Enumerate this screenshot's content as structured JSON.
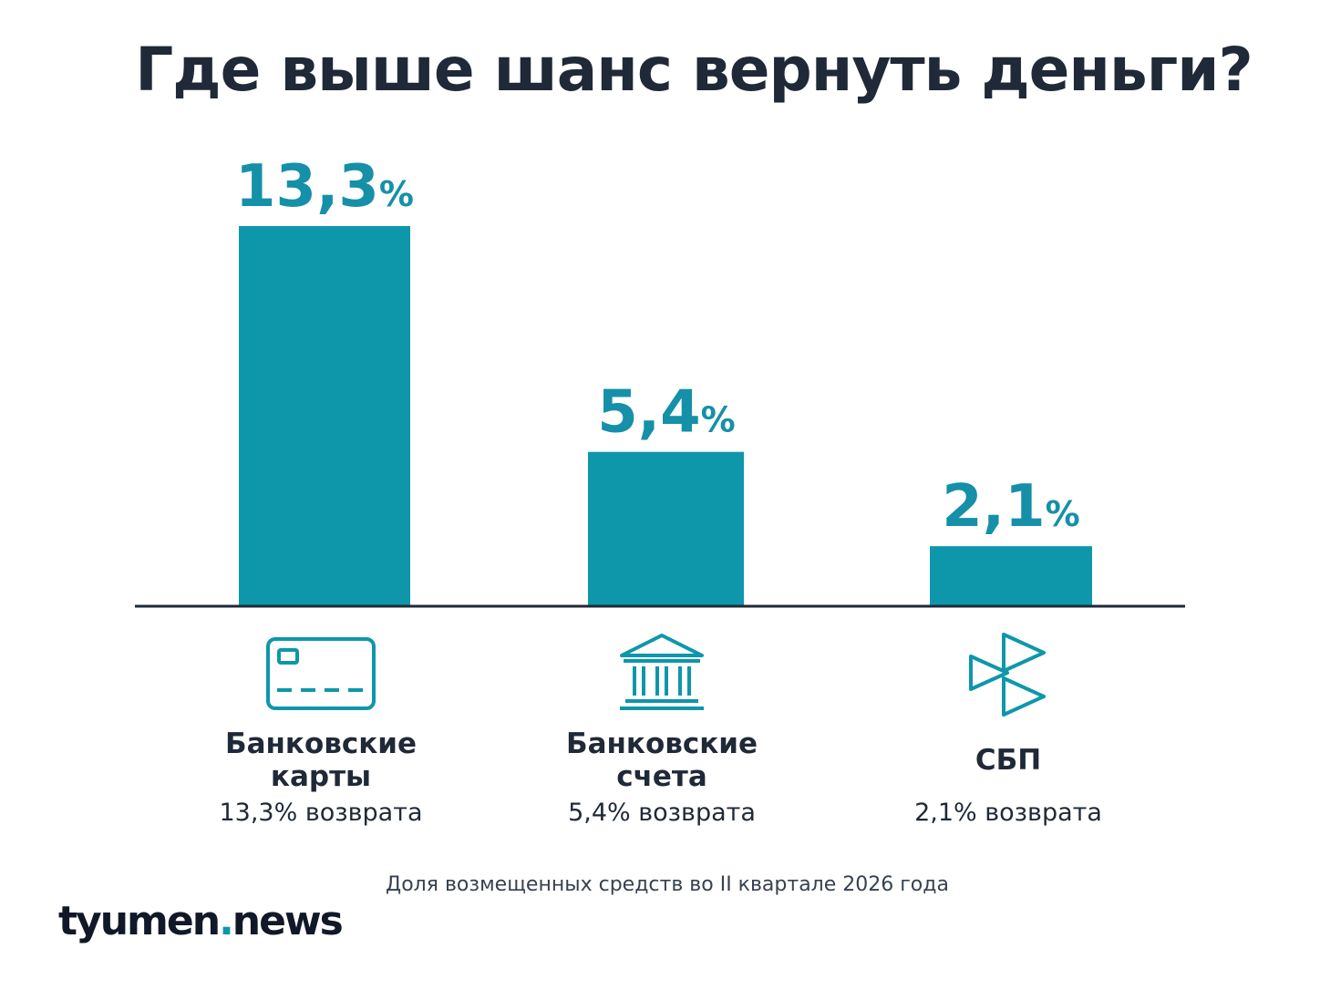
{
  "chart_data": {
    "type": "bar",
    "title": "Где выше шанс вернуть деньги?",
    "categories": [
      "Банковские\nкарты",
      "Банковские\nсчета",
      "СБП"
    ],
    "values": [
      13.3,
      5.4,
      2.1
    ],
    "value_labels": [
      "13,3",
      "5,4",
      "2,1"
    ],
    "unit": "%",
    "sublabels": [
      "13,3% возврата",
      "5,4% возврата",
      "2,1% возврата"
    ],
    "icons": [
      "credit-card-icon",
      "bank-building-icon",
      "sbp-logo-icon"
    ],
    "ylim": [
      0,
      13.3
    ],
    "grid": false,
    "legend": "none",
    "footnote": "Доля возмещенных средств во II квартале 2026 года",
    "bar_color": "#0e97ab",
    "label_color": "#1590a8",
    "axis_color": "#1f2937"
  },
  "logo": {
    "main": "tyumen",
    "dot": ".",
    "suffix": "news"
  }
}
